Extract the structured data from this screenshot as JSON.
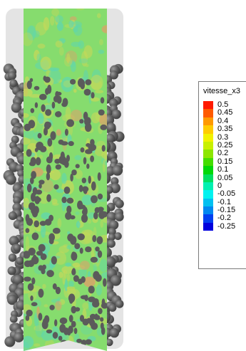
{
  "legend": {
    "title": "vitesse_x3",
    "items": [
      {
        "label": "0.5",
        "color": "#ff1a00"
      },
      {
        "label": "0.45",
        "color": "#ff5a00"
      },
      {
        "label": "0.4",
        "color": "#ff9900"
      },
      {
        "label": "0.35",
        "color": "#ffcc00"
      },
      {
        "label": "0.3",
        "color": "#f2f200"
      },
      {
        "label": "0.25",
        "color": "#c8f000"
      },
      {
        "label": "0.2",
        "color": "#8ce600"
      },
      {
        "label": "0.15",
        "color": "#44dd00"
      },
      {
        "label": "0.1",
        "color": "#00d80a"
      },
      {
        "label": "0.05",
        "color": "#00e060"
      },
      {
        "label": "0",
        "color": "#00f0b0"
      },
      {
        "label": "-0.05",
        "color": "#00f2f0"
      },
      {
        "label": "-0.1",
        "color": "#00c0f0"
      },
      {
        "label": "-0.15",
        "color": "#0088f0"
      },
      {
        "label": "-0.2",
        "color": "#0040f0"
      },
      {
        "label": "-0.25",
        "color": "#0000dd"
      }
    ]
  },
  "colors": {
    "tube": "#e4e4e4",
    "sphere": "#5b5b5b",
    "sphere_highlight": "#8a8a8a",
    "slice_base": "#86dc6e",
    "slice_cool": "#5fd6b0",
    "slice_warm": "#c6d85a",
    "slice_hot": "#e79a6a"
  },
  "scene": {
    "visualisation": "velocity slice through packed sphere bed"
  }
}
